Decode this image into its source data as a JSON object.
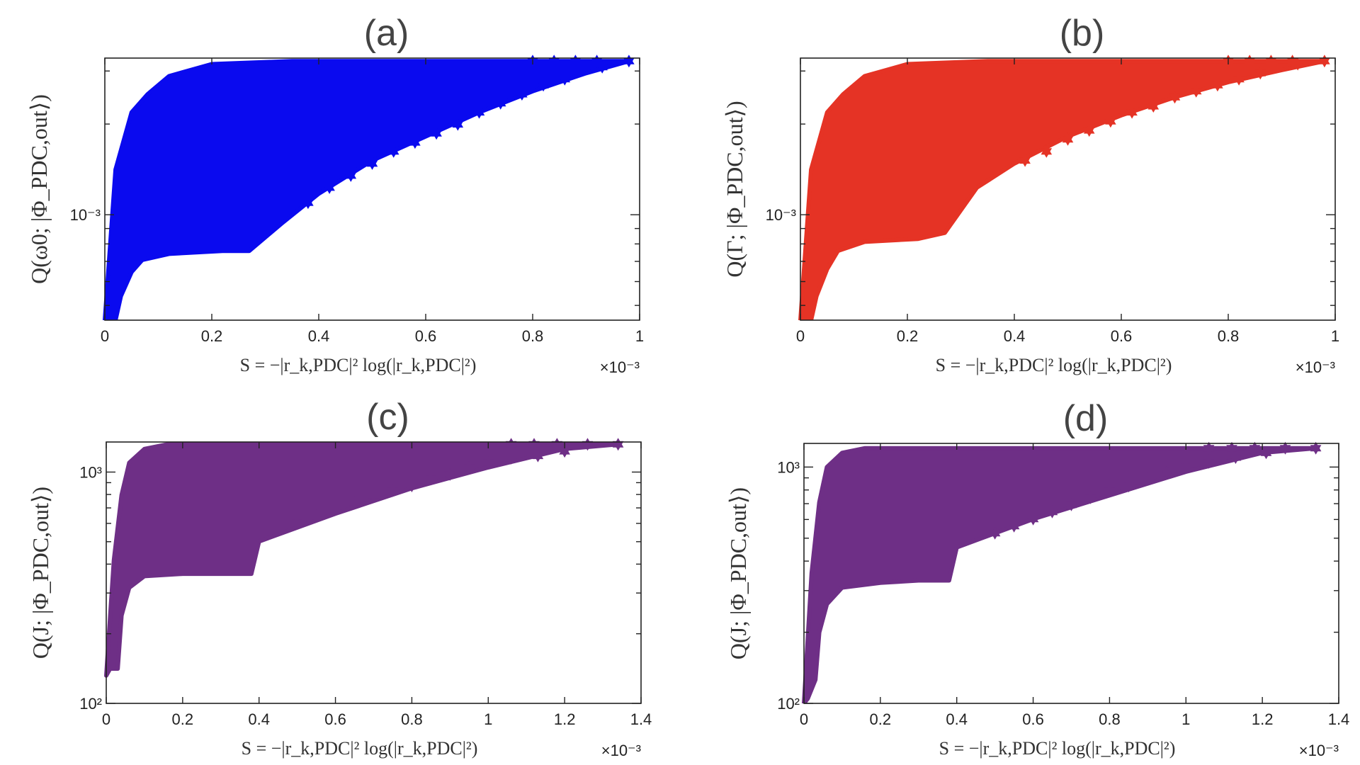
{
  "figure": {
    "background": "#ffffff",
    "axis_color": "#222222",
    "title_color": "#444444"
  },
  "chart_data": [
    {
      "panel": "(a)",
      "type": "scatter",
      "marker": "star",
      "color": "#0a0aef",
      "xlabel": "S = −|r_k,PDC|² log(|r_k,PDC|²)",
      "ylabel": "Q(ω0; |Φ_PDC,out⟩)",
      "x_multiplier": "×10⁻³",
      "xlim": [
        0,
        1.0
      ],
      "ylim_log10": [
        -3.35,
        -2.48
      ],
      "y_scale": "log",
      "xticks": [
        "0",
        "0.2",
        "0.4",
        "0.6",
        "0.8",
        "1"
      ],
      "xtick_values": [
        0,
        0.2,
        0.4,
        0.6,
        0.8,
        1.0
      ],
      "ytick_labels": [
        "10⁻³"
      ],
      "ytick_values_log10": [
        -3
      ],
      "grid": false,
      "region": {
        "upper_x": [
          0.0,
          0.02,
          0.05,
          0.08,
          0.12,
          0.2,
          0.35,
          0.55,
          0.8,
          0.98
        ],
        "upper_log10y": [
          -3.35,
          -2.85,
          -2.66,
          -2.6,
          -2.54,
          -2.5,
          -2.49,
          -2.49,
          -2.49,
          -2.49
        ],
        "lower_x": [
          0.98,
          0.9,
          0.8,
          0.7,
          0.6,
          0.5,
          0.4,
          0.33,
          0.27,
          0.22,
          0.12,
          0.07,
          0.05,
          0.03,
          0.02,
          0.0
        ],
        "lower_log10y": [
          -2.49,
          -2.53,
          -2.59,
          -2.66,
          -2.74,
          -2.82,
          -2.93,
          -3.03,
          -3.12,
          -3.12,
          -3.13,
          -3.15,
          -3.19,
          -3.27,
          -3.35,
          -3.35
        ]
      },
      "edge_points": [
        [
          0.98,
          -2.49
        ],
        [
          0.93,
          -2.51
        ],
        [
          0.89,
          -2.52
        ],
        [
          0.86,
          -2.55
        ],
        [
          0.82,
          -2.57
        ],
        [
          0.78,
          -2.6
        ],
        [
          0.74,
          -2.63
        ],
        [
          0.7,
          -2.66
        ],
        [
          0.66,
          -2.7
        ],
        [
          0.62,
          -2.73
        ],
        [
          0.58,
          -2.76
        ],
        [
          0.54,
          -2.79
        ],
        [
          0.5,
          -2.83
        ],
        [
          0.46,
          -2.87
        ],
        [
          0.42,
          -2.91
        ],
        [
          0.38,
          -2.96
        ],
        [
          0.92,
          -2.49
        ],
        [
          0.88,
          -2.49
        ],
        [
          0.84,
          -2.49
        ],
        [
          0.8,
          -2.49
        ]
      ]
    },
    {
      "panel": "(b)",
      "type": "scatter",
      "marker": "star",
      "color": "#e53325",
      "xlabel": "S = −|r_k,PDC|² log(|r_k,PDC|²)",
      "ylabel": "Q(Γ; |Φ_PDC,out⟩)",
      "x_multiplier": "×10⁻³",
      "xlim": [
        0,
        1.0
      ],
      "ylim_log10": [
        -3.35,
        -2.48
      ],
      "y_scale": "log",
      "xticks": [
        "0",
        "0.2",
        "0.4",
        "0.6",
        "0.8",
        "1"
      ],
      "xtick_values": [
        0,
        0.2,
        0.4,
        0.6,
        0.8,
        1.0
      ],
      "ytick_labels": [
        "10⁻³"
      ],
      "ytick_values_log10": [
        -3
      ],
      "grid": false,
      "region": {
        "upper_x": [
          0.0,
          0.02,
          0.05,
          0.08,
          0.12,
          0.2,
          0.35,
          0.55,
          0.8,
          0.98
        ],
        "upper_log10y": [
          -3.35,
          -2.85,
          -2.66,
          -2.6,
          -2.54,
          -2.5,
          -2.49,
          -2.49,
          -2.49,
          -2.49
        ],
        "lower_x": [
          0.98,
          0.9,
          0.8,
          0.7,
          0.6,
          0.5,
          0.4,
          0.33,
          0.27,
          0.22,
          0.12,
          0.07,
          0.05,
          0.03,
          0.02,
          0.0
        ],
        "lower_log10y": [
          -2.49,
          -2.52,
          -2.56,
          -2.61,
          -2.67,
          -2.74,
          -2.83,
          -2.91,
          -3.06,
          -3.08,
          -3.09,
          -3.12,
          -3.18,
          -3.27,
          -3.35,
          -3.35
        ]
      },
      "edge_points": [
        [
          0.98,
          -2.49
        ],
        [
          0.93,
          -2.5
        ],
        [
          0.89,
          -2.51
        ],
        [
          0.86,
          -2.53
        ],
        [
          0.82,
          -2.55
        ],
        [
          0.78,
          -2.57
        ],
        [
          0.74,
          -2.59
        ],
        [
          0.7,
          -2.61
        ],
        [
          0.66,
          -2.64
        ],
        [
          0.62,
          -2.66
        ],
        [
          0.58,
          -2.69
        ],
        [
          0.54,
          -2.72
        ],
        [
          0.5,
          -2.75
        ],
        [
          0.46,
          -2.79
        ],
        [
          0.42,
          -2.82
        ],
        [
          0.92,
          -2.49
        ],
        [
          0.88,
          -2.49
        ],
        [
          0.84,
          -2.49
        ],
        [
          0.8,
          -2.49
        ]
      ]
    },
    {
      "panel": "(c)",
      "type": "scatter",
      "marker": "star",
      "color": "#6e2f86",
      "xlabel": "S = −|r_k,PDC|² log(|r_k,PDC|²)",
      "ylabel": "Q(J; |Φ_PDC,out⟩)",
      "x_multiplier": "×10⁻³",
      "xlim": [
        0,
        1.4
      ],
      "ylim_log10": [
        2.0,
        3.13
      ],
      "y_scale": "log",
      "xticks": [
        "0",
        "0.2",
        "0.4",
        "0.6",
        "0.8",
        "1",
        "1.2",
        "1.4"
      ],
      "xtick_values": [
        0,
        0.2,
        0.4,
        0.6,
        0.8,
        1.0,
        1.2,
        1.4
      ],
      "ytick_labels": [
        "10²",
        "10³"
      ],
      "ytick_values_log10": [
        2,
        3
      ],
      "grid": false,
      "region": {
        "upper_x": [
          0.0,
          0.02,
          0.04,
          0.06,
          0.1,
          0.16,
          0.3,
          0.6,
          1.0,
          1.34
        ],
        "upper_log10y": [
          2.12,
          2.62,
          2.9,
          3.04,
          3.1,
          3.12,
          3.12,
          3.12,
          3.12,
          3.12
        ],
        "lower_x": [
          1.34,
          1.2,
          1.0,
          0.8,
          0.6,
          0.5,
          0.4,
          0.38,
          0.3,
          0.2,
          0.1,
          0.06,
          0.04,
          0.03,
          0.01,
          0.0
        ],
        "lower_log10y": [
          3.12,
          3.1,
          3.02,
          2.93,
          2.82,
          2.76,
          2.7,
          2.56,
          2.56,
          2.56,
          2.55,
          2.5,
          2.38,
          2.15,
          2.15,
          2.12
        ]
      },
      "edge_points": [
        [
          1.34,
          3.12
        ],
        [
          1.26,
          3.12
        ],
        [
          1.18,
          3.12
        ],
        [
          1.12,
          3.12
        ],
        [
          1.06,
          3.12
        ],
        [
          1.2,
          3.09
        ],
        [
          1.13,
          3.07
        ],
        [
          1.06,
          3.06
        ],
        [
          1.0,
          3.04
        ],
        [
          0.95,
          3.02
        ],
        [
          0.9,
          2.99
        ],
        [
          0.85,
          2.97
        ],
        [
          0.8,
          2.94
        ],
        [
          0.75,
          2.92
        ],
        [
          0.7,
          2.9
        ],
        [
          0.65,
          2.87
        ],
        [
          0.6,
          2.84
        ],
        [
          0.55,
          2.81
        ],
        [
          0.5,
          2.78
        ]
      ]
    },
    {
      "panel": "(d)",
      "type": "scatter",
      "marker": "star",
      "color": "#6e2f86",
      "xlabel": "S = −|r_k,PDC|² log(|r_k,PDC|²)",
      "ylabel": "Q(J; |Φ_PDC,out⟩)",
      "x_multiplier": "×10⁻³",
      "xlim": [
        0,
        1.4
      ],
      "ylim_log10": [
        2.0,
        3.1
      ],
      "y_scale": "log",
      "xticks": [
        "0",
        "0.2",
        "0.4",
        "0.6",
        "0.8",
        "1",
        "1.2",
        "1.4"
      ],
      "xtick_values": [
        0,
        0.2,
        0.4,
        0.6,
        0.8,
        1.0,
        1.2,
        1.4
      ],
      "ytick_labels": [
        "10²",
        "10³"
      ],
      "ytick_values_log10": [
        2,
        3
      ],
      "grid": false,
      "region": {
        "upper_x": [
          0.0,
          0.02,
          0.04,
          0.06,
          0.1,
          0.16,
          0.3,
          0.6,
          1.0,
          1.34
        ],
        "upper_log10y": [
          2.0,
          2.55,
          2.85,
          3.0,
          3.06,
          3.08,
          3.08,
          3.08,
          3.08,
          3.08
        ],
        "lower_x": [
          1.34,
          1.2,
          1.0,
          0.8,
          0.6,
          0.5,
          0.4,
          0.38,
          0.3,
          0.2,
          0.1,
          0.06,
          0.04,
          0.03,
          0.01,
          0.0
        ],
        "lower_log10y": [
          3.08,
          3.06,
          2.98,
          2.88,
          2.78,
          2.72,
          2.66,
          2.52,
          2.52,
          2.51,
          2.49,
          2.42,
          2.3,
          2.1,
          2.02,
          2.0
        ]
      },
      "edge_points": [
        [
          1.34,
          3.08
        ],
        [
          1.26,
          3.08
        ],
        [
          1.18,
          3.08
        ],
        [
          1.12,
          3.08
        ],
        [
          1.06,
          3.08
        ],
        [
          1.21,
          3.06
        ],
        [
          1.13,
          3.04
        ],
        [
          1.06,
          3.02
        ],
        [
          1.0,
          3.0
        ],
        [
          0.95,
          2.98
        ],
        [
          0.9,
          2.95
        ],
        [
          0.85,
          2.92
        ],
        [
          0.8,
          2.9
        ],
        [
          0.75,
          2.87
        ],
        [
          0.7,
          2.84
        ],
        [
          0.65,
          2.81
        ],
        [
          0.6,
          2.78
        ],
        [
          0.55,
          2.75
        ],
        [
          0.5,
          2.72
        ]
      ]
    }
  ]
}
